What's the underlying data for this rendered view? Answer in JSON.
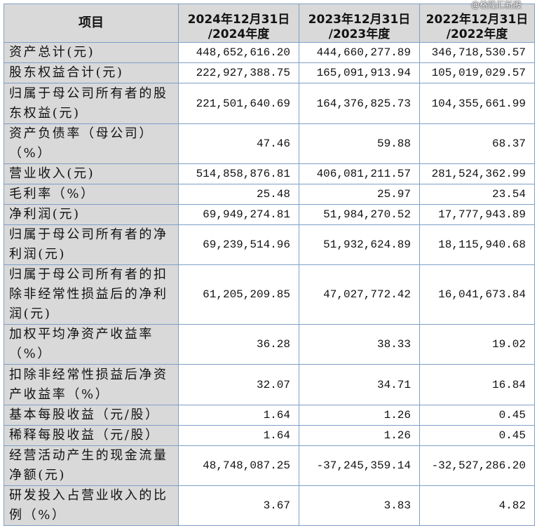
{
  "header": {
    "item": "项目",
    "col1_line1": "2024年12月31日",
    "col1_line2": "/2024年度",
    "col2_line1": "2023年12月31日",
    "col2_line2": "/2023年度",
    "col3_line1": "2022年12月31日",
    "col3_line2": "/2022年度"
  },
  "watermark": "@格隆汇新股",
  "rows": [
    {
      "label": "资产总计(元)",
      "v2024": "448,652,616.20",
      "v2023": "444,660,277.89",
      "v2022": "346,718,530.57"
    },
    {
      "label": "股东权益合计(元)",
      "v2024": "222,927,388.75",
      "v2023": "165,091,913.94",
      "v2022": "105,019,029.57"
    },
    {
      "label": "归属于母公司所有者的股东权益(元)",
      "v2024": "221,501,640.69",
      "v2023": "164,376,825.73",
      "v2022": "104,355,661.99"
    },
    {
      "label": "资产负债率（母公司）（%）",
      "v2024": "47.46",
      "v2023": "59.88",
      "v2022": "68.37"
    },
    {
      "label": "营业收入(元)",
      "v2024": "514,858,876.81",
      "v2023": "406,081,211.57",
      "v2022": "281,524,362.99"
    },
    {
      "label": "毛利率（%）",
      "v2024": "25.48",
      "v2023": "25.97",
      "v2022": "23.54"
    },
    {
      "label": "净利润(元)",
      "v2024": "69,949,274.81",
      "v2023": "51,984,270.52",
      "v2022": "17,777,943.89"
    },
    {
      "label": "归属于母公司所有者的净利润(元)",
      "v2024": "69,239,514.96",
      "v2023": "51,932,624.89",
      "v2022": "18,115,940.68"
    },
    {
      "label": "归属于母公司所有者的扣除非经常性损益后的净利润(元)",
      "v2024": "61,205,209.85",
      "v2023": "47,027,772.42",
      "v2022": "16,041,673.84"
    },
    {
      "label": "加权平均净资产收益率（%）",
      "v2024": "36.28",
      "v2023": "38.33",
      "v2022": "19.02"
    },
    {
      "label": "扣除非经常性损益后净资产收益率（%）",
      "v2024": "32.07",
      "v2023": "34.71",
      "v2022": "16.84"
    },
    {
      "label": "基本每股收益（元/股）",
      "v2024": "1.64",
      "v2023": "1.26",
      "v2022": "0.45"
    },
    {
      "label": "稀释每股收益（元/股）",
      "v2024": "1.64",
      "v2023": "1.26",
      "v2022": "0.45"
    },
    {
      "label": "经营活动产生的现金流量净额(元)",
      "v2024": "48,748,087.25",
      "v2023": "-37,245,359.14",
      "v2022": "-32,527,286.20"
    },
    {
      "label": "研发投入占营业收入的比例（%）",
      "v2024": "3.67",
      "v2023": "3.83",
      "v2022": "4.82"
    }
  ]
}
